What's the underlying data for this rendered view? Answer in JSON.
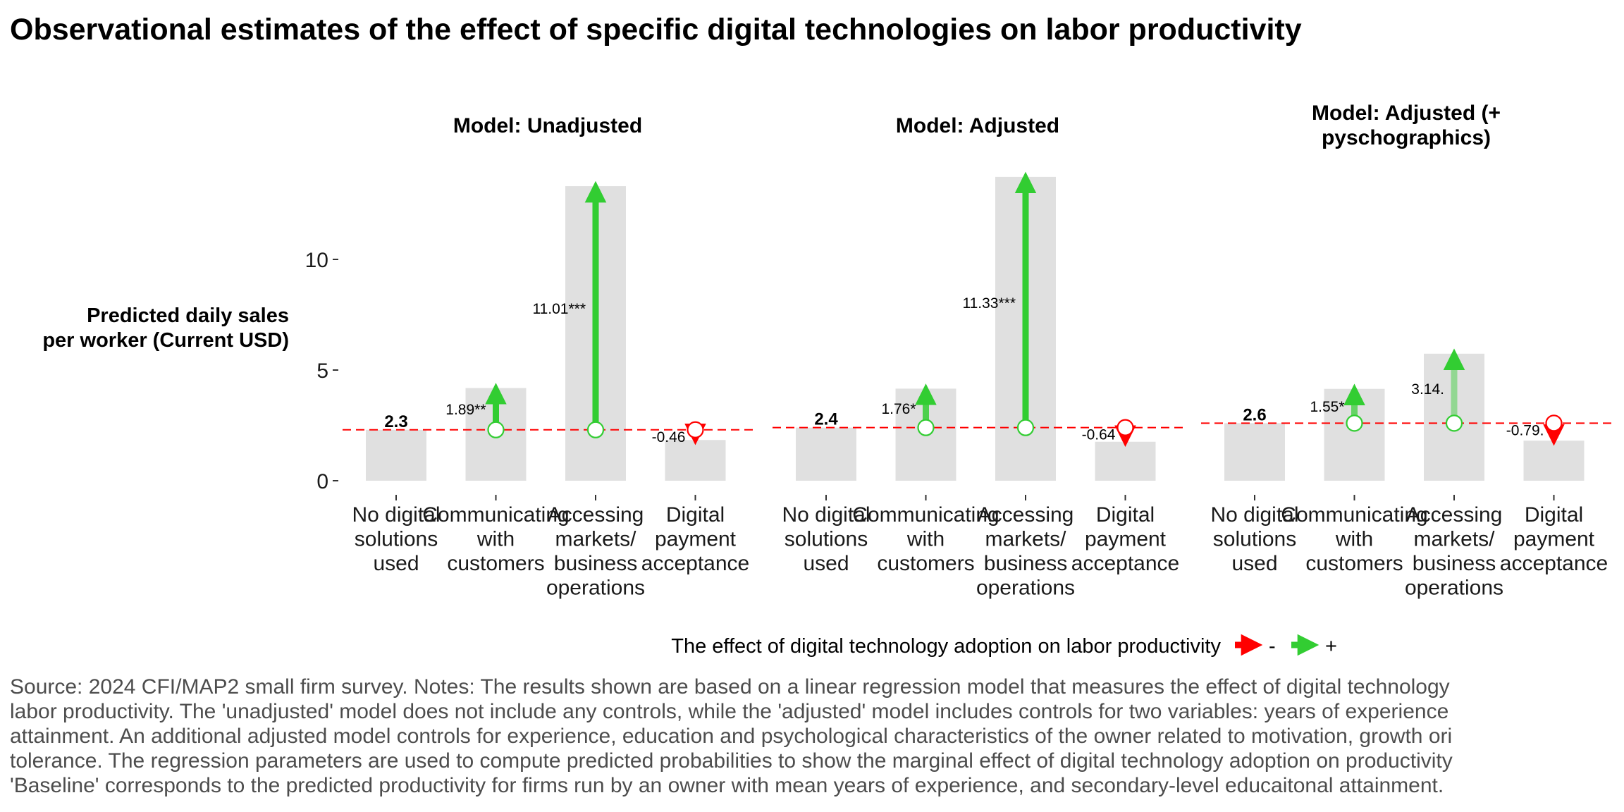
{
  "title": "Observational estimates of the effect of specific digital technologies on labor productivity",
  "colors": {
    "bar": "#e0e0e0",
    "positive": "#32cd32",
    "negative": "#ff0000",
    "baseline_line": "#ff0000",
    "text": "#000000",
    "note_text": "#4d4d4d"
  },
  "chart_data": {
    "type": "bar",
    "ylabel": "Predicted daily sales per worker (Current USD)",
    "ylabel_lines": [
      "Predicted daily sales",
      "per worker (Current USD)"
    ],
    "ylim": [
      0,
      13.5
    ],
    "yticks": [
      0,
      5,
      10
    ],
    "grid": false,
    "categories": [
      [
        "No digital",
        "solutions",
        "used"
      ],
      [
        "Communicating",
        "with",
        "customers"
      ],
      [
        "Accessing",
        "markets/",
        "business",
        "operations"
      ],
      [
        "Digital",
        "payment",
        "acceptance"
      ]
    ],
    "facets": [
      {
        "title_lines": [
          "Model: Unadjusted"
        ],
        "baseline": 2.3,
        "baseline_label": "2.3",
        "effects": [
          1.89,
          11.01,
          -0.46
        ],
        "effect_labels": [
          "1.89**",
          "11.01***",
          "-0.46"
        ],
        "opacity": [
          1,
          1,
          0.35
        ]
      },
      {
        "title_lines": [
          "Model: Adjusted"
        ],
        "baseline": 2.4,
        "baseline_label": "2.4",
        "effects": [
          1.76,
          11.33,
          -0.64
        ],
        "effect_labels": [
          "1.76*",
          "11.33***",
          "-0.64"
        ],
        "opacity": [
          0.85,
          1,
          0.35
        ]
      },
      {
        "title_lines": [
          "Model: Adjusted (+",
          "pyschographics)"
        ],
        "baseline": 2.6,
        "baseline_label": "2.6",
        "effects": [
          1.55,
          3.14,
          -0.79
        ],
        "effect_labels": [
          "1.55*",
          "3.14.",
          "-0.79."
        ],
        "opacity": [
          0.7,
          0.45,
          0.45
        ]
      }
    ],
    "legend": {
      "position": "bottom",
      "title": "The effect of digital technology adoption on labor productivity",
      "items": [
        {
          "label": "-",
          "color": "#ff0000"
        },
        {
          "label": "+",
          "color": "#32cd32"
        }
      ]
    }
  },
  "source_note": [
    "Source: 2024 CFI/MAP2 small firm survey. Notes: The results shown are based on a linear regression model that measures the effect of digital technology",
    "labor productivity. The 'unadjusted' model does not include any controls, while the 'adjusted' model includes controls for two variables: years of experience",
    "attainment. An additional adjusted model controls for experience, education and psychological characteristics of the owner related to motivation, growth ori",
    "tolerance. The regression parameters are used to compute predicted probabilities to show the marginal effect of digital technology adoption on productivity",
    "'Baseline' corresponds to the predicted productivity for firms run by an owner with mean years of experience, and secondary-level educaitonal attainment."
  ]
}
